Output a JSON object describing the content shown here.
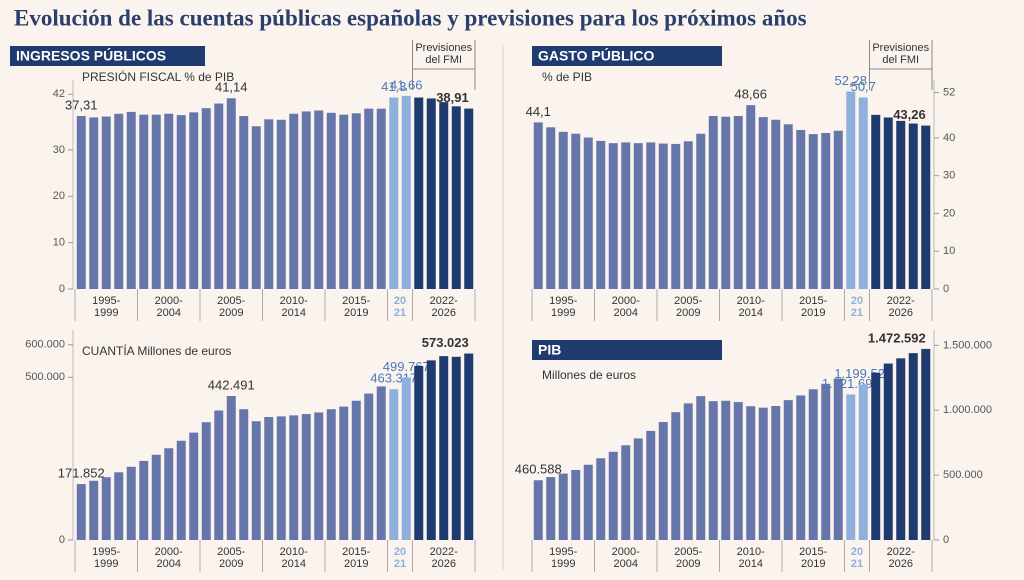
{
  "title": "Evolución de las cuentas públicas españolas y previsiones para los próximos años",
  "chart_data": [
    {
      "type": "bar",
      "header": "INGRESOS PÚBLICOS",
      "subtitle": "PRESIÓN FISCAL % de PIB",
      "forecast_note": [
        "Previsiones",
        "del FMI"
      ],
      "y_axis_side": "left",
      "grid": false,
      "category_groups": [
        {
          "label": [
            "1995-",
            "1999"
          ],
          "size": 5,
          "color": "#6676ab"
        },
        {
          "label": [
            "2000-",
            "2004"
          ],
          "size": 5,
          "color": "#6676ab"
        },
        {
          "label": [
            "2005-",
            "2009"
          ],
          "size": 5,
          "color": "#6676ab"
        },
        {
          "label": [
            "2010-",
            "2014"
          ],
          "size": 5,
          "color": "#6676ab"
        },
        {
          "label": [
            "2015-",
            "2019"
          ],
          "size": 5,
          "color": "#6676ab"
        },
        {
          "label": [
            "20",
            "21"
          ],
          "size": 2,
          "color": "#8fb0dc"
        },
        {
          "label": [
            "2022-",
            "2026"
          ],
          "size": 5,
          "color": "#1e3a6e"
        }
      ],
      "values": [
        37.31,
        37.0,
        37.2,
        37.8,
        38.2,
        37.6,
        37.6,
        37.8,
        37.5,
        38.1,
        39.0,
        40.0,
        41.14,
        37.3,
        35.1,
        36.6,
        36.5,
        37.8,
        38.3,
        38.5,
        38.0,
        37.6,
        37.9,
        38.9,
        38.9,
        41.3,
        41.66,
        41.3,
        41.1,
        40.3,
        39.4,
        38.91
      ],
      "value_labels": [
        "37,31",
        null,
        null,
        null,
        null,
        null,
        null,
        null,
        null,
        null,
        null,
        null,
        "41,14",
        null,
        null,
        null,
        null,
        null,
        null,
        null,
        null,
        null,
        null,
        null,
        null,
        "41,3",
        "41,66",
        null,
        null,
        null,
        null,
        "38,91"
      ],
      "ylim": [
        0,
        44
      ],
      "yticks": [
        0,
        10,
        20,
        30,
        42
      ]
    },
    {
      "type": "bar",
      "header": "GASTO PÚBLICO",
      "subtitle": "% de PIB",
      "forecast_note": [
        "Previsiones",
        "del FMI"
      ],
      "y_axis_side": "right",
      "grid": false,
      "category_groups": [
        {
          "label": [
            "1995-",
            "1999"
          ],
          "size": 5,
          "color": "#6676ab"
        },
        {
          "label": [
            "2000-",
            "2004"
          ],
          "size": 5,
          "color": "#6676ab"
        },
        {
          "label": [
            "2005-",
            "2009"
          ],
          "size": 5,
          "color": "#6676ab"
        },
        {
          "label": [
            "2010-",
            "2014"
          ],
          "size": 5,
          "color": "#6676ab"
        },
        {
          "label": [
            "2015-",
            "2019"
          ],
          "size": 5,
          "color": "#6676ab"
        },
        {
          "label": [
            "20",
            "21"
          ],
          "size": 2,
          "color": "#8fb0dc"
        },
        {
          "label": [
            "2022-",
            "2026"
          ],
          "size": 5,
          "color": "#1e3a6e"
        }
      ],
      "values": [
        44.1,
        42.8,
        41.6,
        41.1,
        40.1,
        39.2,
        38.6,
        38.8,
        38.6,
        38.8,
        38.5,
        38.4,
        39.1,
        41.1,
        45.8,
        45.6,
        45.8,
        48.66,
        45.5,
        44.8,
        43.6,
        42.1,
        41.0,
        41.3,
        41.9,
        52.28,
        50.7,
        46.1,
        45.4,
        44.5,
        43.8,
        43.26
      ],
      "value_labels": [
        "44,1",
        null,
        null,
        null,
        null,
        null,
        null,
        null,
        null,
        null,
        null,
        null,
        null,
        null,
        null,
        null,
        null,
        "48,66",
        null,
        null,
        null,
        null,
        null,
        null,
        null,
        "52,28",
        "50,7",
        null,
        null,
        null,
        null,
        "43,26"
      ],
      "ylim": [
        0,
        54
      ],
      "yticks": [
        0,
        10,
        20,
        30,
        40,
        52
      ]
    },
    {
      "type": "bar",
      "subtitle": "CUANTÍA Millones de euros",
      "y_axis_side": "left",
      "grid": false,
      "category_groups": [
        {
          "label": [
            "1995-",
            "1999"
          ],
          "size": 5,
          "color": "#6676ab"
        },
        {
          "label": [
            "2000-",
            "2004"
          ],
          "size": 5,
          "color": "#6676ab"
        },
        {
          "label": [
            "2005-",
            "2009"
          ],
          "size": 5,
          "color": "#6676ab"
        },
        {
          "label": [
            "2010-",
            "2014"
          ],
          "size": 5,
          "color": "#6676ab"
        },
        {
          "label": [
            "2015-",
            "2019"
          ],
          "size": 5,
          "color": "#6676ab"
        },
        {
          "label": [
            "20",
            "21"
          ],
          "size": 2,
          "color": "#8fb0dc"
        },
        {
          "label": [
            "2022-",
            "2026"
          ],
          "size": 5,
          "color": "#1e3a6e"
        }
      ],
      "values": [
        171852,
        182000,
        193000,
        208000,
        225000,
        243000,
        262000,
        282000,
        305000,
        330000,
        362000,
        398000,
        442491,
        402000,
        365000,
        378000,
        380000,
        383000,
        387000,
        392000,
        402000,
        410000,
        428000,
        450000,
        472000,
        463317,
        499767,
        535000,
        552000,
        565000,
        563000,
        573023
      ],
      "value_labels": [
        "171.852",
        null,
        null,
        null,
        null,
        null,
        null,
        null,
        null,
        null,
        null,
        null,
        "442.491",
        null,
        null,
        null,
        null,
        null,
        null,
        null,
        null,
        null,
        null,
        null,
        null,
        "463.317",
        "499.767",
        null,
        null,
        null,
        null,
        "573.023"
      ],
      "ylim": [
        0,
        630000
      ],
      "yticks": [
        0,
        {
          "value": 500000,
          "label": "500.000"
        },
        {
          "value": 600000,
          "label": "600.000"
        }
      ]
    },
    {
      "type": "bar",
      "header": "PIB",
      "subtitle": "Millones de euros",
      "y_axis_side": "right",
      "grid": false,
      "category_groups": [
        {
          "label": [
            "1995-",
            "1999"
          ],
          "size": 5,
          "color": "#6676ab"
        },
        {
          "label": [
            "2000-",
            "2004"
          ],
          "size": 5,
          "color": "#6676ab"
        },
        {
          "label": [
            "2005-",
            "2009"
          ],
          "size": 5,
          "color": "#6676ab"
        },
        {
          "label": [
            "2010-",
            "2014"
          ],
          "size": 5,
          "color": "#6676ab"
        },
        {
          "label": [
            "2015-",
            "2019"
          ],
          "size": 5,
          "color": "#6676ab"
        },
        {
          "label": [
            "20",
            "21"
          ],
          "size": 2,
          "color": "#8fb0dc"
        },
        {
          "label": [
            "2022-",
            "2026"
          ],
          "size": 5,
          "color": "#1e3a6e"
        }
      ],
      "values": [
        460588,
        485000,
        512000,
        540000,
        580000,
        630000,
        680000,
        730000,
        783000,
        841000,
        909000,
        985000,
        1053000,
        1109000,
        1070000,
        1073000,
        1063000,
        1031000,
        1020000,
        1033000,
        1078000,
        1114000,
        1162000,
        1204000,
        1245000,
        1121698,
        1199527,
        1290000,
        1360000,
        1400000,
        1440000,
        1472592
      ],
      "value_labels": [
        "460.588",
        null,
        null,
        null,
        null,
        null,
        null,
        null,
        null,
        null,
        null,
        null,
        null,
        null,
        null,
        null,
        null,
        null,
        null,
        null,
        null,
        null,
        null,
        null,
        null,
        "1.121.698",
        "1.199.527",
        null,
        null,
        null,
        null,
        "1.472.592"
      ],
      "ylim": [
        0,
        1580000
      ],
      "yticks": [
        0,
        {
          "value": 500000,
          "label": "500.000"
        },
        {
          "value": 1000000,
          "label": "1.000.000"
        },
        {
          "value": 1500000,
          "label": "1.500.000"
        }
      ]
    }
  ]
}
